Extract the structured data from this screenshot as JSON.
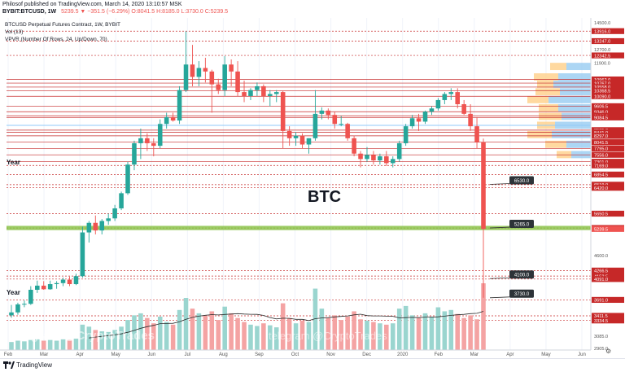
{
  "header": {
    "publisher_line": "Philosof published on TradingView.com, March 14, 2020 13:10:57 MSK",
    "symbol": "BYBIT:BTCUSD, 1W",
    "values": "5239.5 ▼ −351.5 (−6.29%) O:8041.5 H:8185.0 L:3730.0 C:5239.5"
  },
  "legend": {
    "title": "BTCUSD Perpetual Futures Contract, 1W, BYBIT",
    "vol": "Vol (13)",
    "vpvr": "VPVR (Number Of Rows, 24, Up/Down, 70)"
  },
  "annotations": {
    "btc": "BTC",
    "year_top": "Year",
    "year_bottom": "Year",
    "watermark_left": "telegram @CryptoTrades",
    "watermark_center": "telegram @CryptoTrades"
  },
  "callouts": [
    "6530.0",
    "5265.0",
    "4100.0",
    "3730.0"
  ],
  "footer": {
    "brand": "TradingView",
    "zoom": "⚙"
  },
  "colors": {
    "up": "#26a69a",
    "down": "#ef5350",
    "vol_up": "#9ad5cf",
    "vol_down": "#f4a3a3",
    "level": "#c62828",
    "support_zone": "#8bc34a",
    "blue_level": "#90caf9",
    "ma": "#2a2a2a",
    "vpvr_up": "#90c8f0",
    "vpvr_down": "#ffcc80"
  },
  "chart_data": {
    "type": "candlestick",
    "title": "BTCUSD Perpetual Futures Contract, 1W, BYBIT",
    "x_ticks": [
      "Feb",
      "Mar",
      "Apr",
      "May",
      "Jun",
      "Jul",
      "Aug",
      "Sep",
      "Oct",
      "Nov",
      "Dec",
      "2020",
      "Feb",
      "Mar",
      "Apr",
      "May",
      "Jun"
    ],
    "y_scale": "log",
    "y_ticks": [
      14500.0,
      13916.0,
      13247.0,
      12700.0,
      12342.5,
      11900.0,
      10962.0,
      10767.0,
      10558.0,
      10368.5,
      10090.0,
      9606.5,
      9346.0,
      9160.0,
      9084.5,
      8535.0,
      8441.0,
      8297.0,
      8041.5,
      7795.0,
      7556.0,
      7301.0,
      7169.0,
      6854.5,
      6519.0,
      6420.0,
      5650.5,
      5264.0,
      5239.5,
      4600.0,
      4266.5,
      4152.5,
      4091.0,
      3691.0,
      3411.5,
      3334.5,
      3085.0,
      2905.0
    ],
    "ylim": [
      2905,
      14500
    ],
    "horizontal_levels": [
      13916.0,
      13247.0,
      12342.5,
      10962.0,
      10767.0,
      10558.0,
      10368.5,
      10090.0,
      9606.5,
      9346.0,
      9160.0,
      9084.5,
      8535.0,
      8441.0,
      8297.0,
      8041.5,
      7795.0,
      7556.0,
      7301.0,
      7169.0,
      6854.5,
      6519.0,
      6420.0,
      5650.5,
      5264.0,
      4266.5,
      4152.5,
      4091.0,
      3691.0,
      3411.5,
      3334.5
    ],
    "candles": [
      {
        "o": 3420,
        "h": 3600,
        "l": 3380,
        "c": 3470
      },
      {
        "o": 3470,
        "h": 3640,
        "l": 3430,
        "c": 3610
      },
      {
        "o": 3610,
        "h": 3680,
        "l": 3560,
        "c": 3620
      },
      {
        "o": 3620,
        "h": 3950,
        "l": 3600,
        "c": 3880
      },
      {
        "o": 3880,
        "h": 4060,
        "l": 3820,
        "c": 3960
      },
      {
        "o": 3960,
        "h": 4050,
        "l": 3880,
        "c": 3890
      },
      {
        "o": 3890,
        "h": 4060,
        "l": 3880,
        "c": 3990
      },
      {
        "o": 3990,
        "h": 4050,
        "l": 3900,
        "c": 4010
      },
      {
        "o": 4010,
        "h": 4120,
        "l": 3950,
        "c": 4080
      },
      {
        "o": 4080,
        "h": 4140,
        "l": 3950,
        "c": 3990
      },
      {
        "o": 3990,
        "h": 4200,
        "l": 3970,
        "c": 4150
      },
      {
        "o": 4150,
        "h": 5300,
        "l": 4120,
        "c": 5150
      },
      {
        "o": 5150,
        "h": 5450,
        "l": 4900,
        "c": 5400
      },
      {
        "o": 5400,
        "h": 5600,
        "l": 5100,
        "c": 5200
      },
      {
        "o": 5200,
        "h": 5500,
        "l": 5100,
        "c": 5450
      },
      {
        "o": 5450,
        "h": 5650,
        "l": 5350,
        "c": 5520
      },
      {
        "o": 5520,
        "h": 5900,
        "l": 5450,
        "c": 5800
      },
      {
        "o": 5800,
        "h": 6300,
        "l": 5750,
        "c": 6250
      },
      {
        "o": 6250,
        "h": 7300,
        "l": 6200,
        "c": 7200
      },
      {
        "o": 7200,
        "h": 8100,
        "l": 7000,
        "c": 8000
      },
      {
        "o": 8000,
        "h": 8600,
        "l": 7400,
        "c": 8200
      },
      {
        "o": 8200,
        "h": 8400,
        "l": 7700,
        "c": 8000
      },
      {
        "o": 8000,
        "h": 8200,
        "l": 7500,
        "c": 7900
      },
      {
        "o": 7900,
        "h": 9000,
        "l": 7800,
        "c": 8800
      },
      {
        "o": 8800,
        "h": 9300,
        "l": 8600,
        "c": 9100
      },
      {
        "o": 9100,
        "h": 9300,
        "l": 8900,
        "c": 8950
      },
      {
        "o": 8950,
        "h": 10600,
        "l": 8800,
        "c": 10400
      },
      {
        "o": 10400,
        "h": 13900,
        "l": 10300,
        "c": 11800
      },
      {
        "o": 11800,
        "h": 13000,
        "l": 10600,
        "c": 11100
      },
      {
        "o": 11100,
        "h": 12000,
        "l": 10600,
        "c": 11600
      },
      {
        "o": 11600,
        "h": 12200,
        "l": 10800,
        "c": 11400
      },
      {
        "o": 11400,
        "h": 11500,
        "l": 9300,
        "c": 10700
      },
      {
        "o": 10700,
        "h": 11000,
        "l": 10200,
        "c": 10400
      },
      {
        "o": 10400,
        "h": 12300,
        "l": 10100,
        "c": 11800
      },
      {
        "o": 11800,
        "h": 12100,
        "l": 10600,
        "c": 11400
      },
      {
        "o": 11400,
        "h": 12000,
        "l": 10100,
        "c": 10300
      },
      {
        "o": 10300,
        "h": 10900,
        "l": 9800,
        "c": 10100
      },
      {
        "o": 10100,
        "h": 10500,
        "l": 9900,
        "c": 10400
      },
      {
        "o": 10400,
        "h": 10800,
        "l": 10100,
        "c": 10600
      },
      {
        "o": 10600,
        "h": 10700,
        "l": 9800,
        "c": 10100
      },
      {
        "o": 10100,
        "h": 10400,
        "l": 9600,
        "c": 10200
      },
      {
        "o": 10200,
        "h": 10400,
        "l": 9800,
        "c": 10300
      },
      {
        "o": 10300,
        "h": 10350,
        "l": 7800,
        "c": 8500
      },
      {
        "o": 8500,
        "h": 8700,
        "l": 7900,
        "c": 8200
      },
      {
        "o": 8200,
        "h": 8450,
        "l": 7900,
        "c": 8300
      },
      {
        "o": 8300,
        "h": 8400,
        "l": 7800,
        "c": 7950
      },
      {
        "o": 7950,
        "h": 8200,
        "l": 7600,
        "c": 8200
      },
      {
        "o": 8200,
        "h": 10400,
        "l": 8100,
        "c": 9250
      },
      {
        "o": 9250,
        "h": 9550,
        "l": 9000,
        "c": 9400
      },
      {
        "o": 9400,
        "h": 9500,
        "l": 9000,
        "c": 9200
      },
      {
        "o": 9200,
        "h": 9350,
        "l": 8600,
        "c": 8800
      },
      {
        "o": 8800,
        "h": 9150,
        "l": 8700,
        "c": 8800
      },
      {
        "o": 8800,
        "h": 8850,
        "l": 8100,
        "c": 8200
      },
      {
        "o": 8200,
        "h": 8300,
        "l": 7500,
        "c": 7600
      },
      {
        "o": 7600,
        "h": 7700,
        "l": 7100,
        "c": 7400
      },
      {
        "o": 7400,
        "h": 7850,
        "l": 7300,
        "c": 7550
      },
      {
        "o": 7550,
        "h": 7700,
        "l": 7200,
        "c": 7350
      },
      {
        "o": 7350,
        "h": 7600,
        "l": 7200,
        "c": 7500
      },
      {
        "o": 7500,
        "h": 7700,
        "l": 7150,
        "c": 7250
      },
      {
        "o": 7250,
        "h": 7500,
        "l": 7100,
        "c": 7400
      },
      {
        "o": 7400,
        "h": 8100,
        "l": 7300,
        "c": 8000
      },
      {
        "o": 8000,
        "h": 8800,
        "l": 7900,
        "c": 8700
      },
      {
        "o": 8700,
        "h": 9200,
        "l": 8600,
        "c": 9050
      },
      {
        "o": 9050,
        "h": 9250,
        "l": 8500,
        "c": 8900
      },
      {
        "o": 8900,
        "h": 9400,
        "l": 8800,
        "c": 9350
      },
      {
        "o": 9350,
        "h": 9600,
        "l": 9200,
        "c": 9500
      },
      {
        "o": 9500,
        "h": 10000,
        "l": 9400,
        "c": 9900
      },
      {
        "o": 9900,
        "h": 10300,
        "l": 9700,
        "c": 10200
      },
      {
        "o": 10200,
        "h": 10500,
        "l": 9900,
        "c": 10300
      },
      {
        "o": 10300,
        "h": 10500,
        "l": 9500,
        "c": 9700
      },
      {
        "o": 9700,
        "h": 9900,
        "l": 9200,
        "c": 9250
      },
      {
        "o": 9250,
        "h": 9700,
        "l": 8500,
        "c": 8700
      },
      {
        "o": 8700,
        "h": 9100,
        "l": 7800,
        "c": 8041.5
      },
      {
        "o": 8041.5,
        "h": 8185,
        "l": 3730,
        "c": 5239.5
      }
    ],
    "volume": [
      {
        "v": 12,
        "up": true
      },
      {
        "v": 14,
        "up": true
      },
      {
        "v": 13,
        "up": true
      },
      {
        "v": 15,
        "up": true
      },
      {
        "v": 16,
        "up": true
      },
      {
        "v": 14,
        "up": false
      },
      {
        "v": 15,
        "up": true
      },
      {
        "v": 14,
        "up": true
      },
      {
        "v": 16,
        "up": true
      },
      {
        "v": 15,
        "up": false
      },
      {
        "v": 17,
        "up": true
      },
      {
        "v": 38,
        "up": true
      },
      {
        "v": 35,
        "up": true
      },
      {
        "v": 30,
        "up": false
      },
      {
        "v": 28,
        "up": true
      },
      {
        "v": 27,
        "up": true
      },
      {
        "v": 30,
        "up": true
      },
      {
        "v": 35,
        "up": true
      },
      {
        "v": 45,
        "up": true
      },
      {
        "v": 52,
        "up": true
      },
      {
        "v": 55,
        "up": true
      },
      {
        "v": 48,
        "up": false
      },
      {
        "v": 40,
        "up": false
      },
      {
        "v": 50,
        "up": true
      },
      {
        "v": 42,
        "up": true
      },
      {
        "v": 38,
        "up": false
      },
      {
        "v": 60,
        "up": true
      },
      {
        "v": 78,
        "up": true
      },
      {
        "v": 62,
        "up": false
      },
      {
        "v": 55,
        "up": true
      },
      {
        "v": 52,
        "up": false
      },
      {
        "v": 58,
        "up": false
      },
      {
        "v": 45,
        "up": false
      },
      {
        "v": 65,
        "up": true
      },
      {
        "v": 55,
        "up": false
      },
      {
        "v": 48,
        "up": false
      },
      {
        "v": 42,
        "up": false
      },
      {
        "v": 38,
        "up": true
      },
      {
        "v": 36,
        "up": true
      },
      {
        "v": 40,
        "up": false
      },
      {
        "v": 37,
        "up": true
      },
      {
        "v": 34,
        "up": true
      },
      {
        "v": 70,
        "up": false
      },
      {
        "v": 48,
        "up": false
      },
      {
        "v": 40,
        "up": true
      },
      {
        "v": 44,
        "up": false
      },
      {
        "v": 42,
        "up": true
      },
      {
        "v": 92,
        "up": true
      },
      {
        "v": 62,
        "up": true
      },
      {
        "v": 48,
        "up": false
      },
      {
        "v": 52,
        "up": false
      },
      {
        "v": 45,
        "up": false
      },
      {
        "v": 50,
        "up": false
      },
      {
        "v": 58,
        "up": false
      },
      {
        "v": 46,
        "up": false
      },
      {
        "v": 44,
        "up": true
      },
      {
        "v": 42,
        "up": false
      },
      {
        "v": 40,
        "up": true
      },
      {
        "v": 38,
        "up": false
      },
      {
        "v": 40,
        "up": true
      },
      {
        "v": 62,
        "up": true
      },
      {
        "v": 66,
        "up": true
      },
      {
        "v": 52,
        "up": true
      },
      {
        "v": 48,
        "up": false
      },
      {
        "v": 55,
        "up": true
      },
      {
        "v": 50,
        "up": true
      },
      {
        "v": 64,
        "up": true
      },
      {
        "v": 58,
        "up": true
      },
      {
        "v": 60,
        "up": true
      },
      {
        "v": 54,
        "up": false
      },
      {
        "v": 48,
        "up": false
      },
      {
        "v": 52,
        "up": false
      },
      {
        "v": 46,
        "up": false
      },
      {
        "v": 100,
        "up": false
      }
    ]
  }
}
